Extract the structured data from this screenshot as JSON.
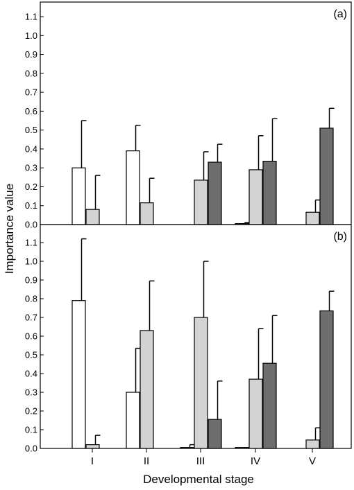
{
  "colors": {
    "series_1": "#ffffff",
    "series_2": "#d3d3d3",
    "series_3": "#6e6e6e",
    "stroke": "#000000"
  },
  "chart_data": {
    "type": "bar",
    "xlabel": "Developmental stage",
    "ylabel": "Importance value",
    "categories": [
      "I",
      "II",
      "III",
      "IV",
      "V"
    ],
    "panels": [
      {
        "label": "(a)",
        "ylim": [
          0,
          1.2
        ],
        "yticks": [
          "0.0",
          "0.1",
          "0.2",
          "0.3",
          "0.4",
          "0.5",
          "0.6",
          "0.7",
          "0.8",
          "0.9",
          "1.0",
          "1.1"
        ],
        "series": [
          {
            "values": [
              0.3,
              0.39,
              0.0,
              0.005,
              0.0
            ],
            "errors": [
              0.25,
              0.135,
              0.0,
              0.005,
              0.0
            ]
          },
          {
            "values": [
              0.08,
              0.115,
              0.235,
              0.29,
              0.065
            ],
            "errors": [
              0.18,
              0.13,
              0.15,
              0.18,
              0.065
            ]
          },
          {
            "values": [
              0.0,
              0.0,
              0.33,
              0.335,
              0.51
            ],
            "errors": [
              0.0,
              0.0,
              0.095,
              0.225,
              0.105
            ]
          }
        ]
      },
      {
        "label": "(b)",
        "ylim": [
          0,
          1.2
        ],
        "yticks": [
          "0.0",
          "0.1",
          "0.2",
          "0.3",
          "0.4",
          "0.5",
          "0.6",
          "0.7",
          "0.8",
          "0.9",
          "1.0",
          "1.1"
        ],
        "series": [
          {
            "values": [
              0.79,
              0.3,
              0.005,
              0.005,
              0.0
            ],
            "errors": [
              0.33,
              0.235,
              0.015,
              0.0,
              0.0
            ]
          },
          {
            "values": [
              0.02,
              0.63,
              0.7,
              0.37,
              0.045
            ],
            "errors": [
              0.05,
              0.265,
              0.3,
              0.27,
              0.065
            ]
          },
          {
            "values": [
              0.0,
              0.0,
              0.155,
              0.455,
              0.735
            ],
            "errors": [
              0.0,
              0.0,
              0.205,
              0.255,
              0.105
            ]
          }
        ]
      }
    ]
  }
}
